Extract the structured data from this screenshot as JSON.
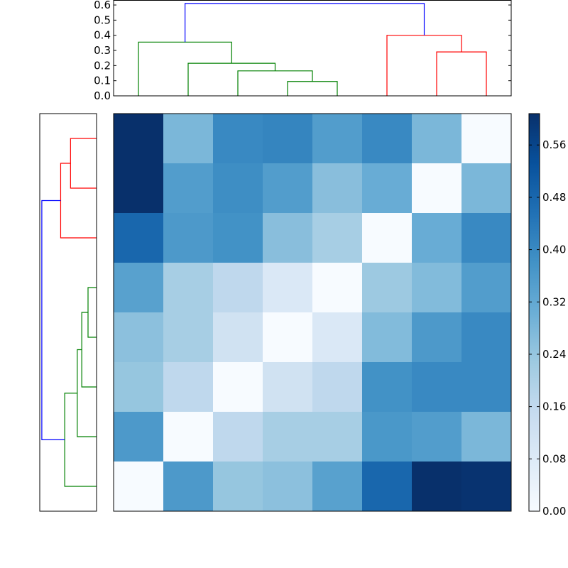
{
  "chart_data": [
    {
      "type": "dendrogram",
      "position": "top",
      "orientation": "vertical",
      "ylim": [
        0,
        0.633
      ],
      "y_ticks": [
        "0.0",
        "0.1",
        "0.2",
        "0.3",
        "0.4",
        "0.5",
        "0.6"
      ],
      "y_tick_values": [
        0,
        0.1,
        0.2,
        0.3,
        0.4,
        0.5,
        0.6
      ],
      "leaf_count": 8,
      "merges": [
        {
          "a": 3,
          "ah": 0,
          "b": 4,
          "bh": 0,
          "h": 0.095,
          "color": "#008000"
        },
        {
          "a": 2,
          "ah": 0,
          "b": 3.5,
          "bh": 0.095,
          "h": 0.165,
          "color": "#008000"
        },
        {
          "a": 1,
          "ah": 0,
          "b": 2.75,
          "bh": 0.165,
          "h": 0.215,
          "color": "#008000"
        },
        {
          "a": 0,
          "ah": 0,
          "b": 1.875,
          "bh": 0.215,
          "h": 0.355,
          "color": "#008000"
        },
        {
          "a": 6,
          "ah": 0,
          "b": 7,
          "bh": 0,
          "h": 0.29,
          "color": "#ff0000"
        },
        {
          "a": 5,
          "ah": 0,
          "b": 6.5,
          "bh": 0.29,
          "h": 0.4,
          "color": "#ff0000"
        },
        {
          "a": 0.9375,
          "ah": 0.355,
          "b": 5.75,
          "bh": 0.4,
          "h": 0.61,
          "color": "#0000ff"
        }
      ]
    },
    {
      "type": "dendrogram",
      "position": "left",
      "orientation": "horizontal",
      "xlim": [
        0.633,
        0
      ],
      "leaf_count": 8,
      "merges": [
        {
          "a": 0,
          "ah": 0,
          "b": 1,
          "bh": 0,
          "h": 0.29,
          "color": "#ff0000"
        },
        {
          "a": 0.5,
          "ah": 0.29,
          "b": 2,
          "bh": 0,
          "h": 0.4,
          "color": "#ff0000"
        },
        {
          "a": 3,
          "ah": 0,
          "b": 4,
          "bh": 0,
          "h": 0.095,
          "color": "#008000"
        },
        {
          "a": 3.5,
          "ah": 0.095,
          "b": 5,
          "bh": 0,
          "h": 0.165,
          "color": "#008000"
        },
        {
          "a": 4.25,
          "ah": 0.165,
          "b": 6,
          "bh": 0,
          "h": 0.215,
          "color": "#008000"
        },
        {
          "a": 5.125,
          "ah": 0.215,
          "b": 7,
          "bh": 0,
          "h": 0.355,
          "color": "#008000"
        },
        {
          "a": 1.25,
          "ah": 0.4,
          "b": 6.0625,
          "bh": 0.355,
          "h": 0.61,
          "color": "#0000ff"
        }
      ]
    },
    {
      "type": "heatmap",
      "colormap": "Blues",
      "vmin": 0,
      "vmax": 0.608,
      "values": [
        [
          0.61,
          0.28,
          0.4,
          0.41,
          0.35,
          0.4,
          0.28,
          0.0
        ],
        [
          0.61,
          0.35,
          0.39,
          0.35,
          0.26,
          0.31,
          0.0,
          0.28
        ],
        [
          0.48,
          0.36,
          0.38,
          0.26,
          0.21,
          0.0,
          0.31,
          0.4
        ],
        [
          0.34,
          0.21,
          0.165,
          0.09,
          0.0,
          0.23,
          0.27,
          0.35
        ],
        [
          0.255,
          0.21,
          0.12,
          0.0,
          0.09,
          0.27,
          0.36,
          0.4
        ],
        [
          0.24,
          0.165,
          0.0,
          0.12,
          0.165,
          0.38,
          0.4,
          0.4
        ],
        [
          0.36,
          0.0,
          0.165,
          0.21,
          0.21,
          0.365,
          0.35,
          0.28
        ],
        [
          0.0,
          0.36,
          0.24,
          0.255,
          0.34,
          0.48,
          0.61,
          0.6
        ]
      ]
    },
    {
      "type": "colorbar",
      "ticks": [
        "0.00",
        "0.08",
        "0.16",
        "0.24",
        "0.32",
        "0.40",
        "0.48",
        "0.56"
      ],
      "tick_values": [
        0,
        0.08,
        0.16,
        0.24,
        0.32,
        0.4,
        0.48,
        0.56
      ]
    }
  ]
}
